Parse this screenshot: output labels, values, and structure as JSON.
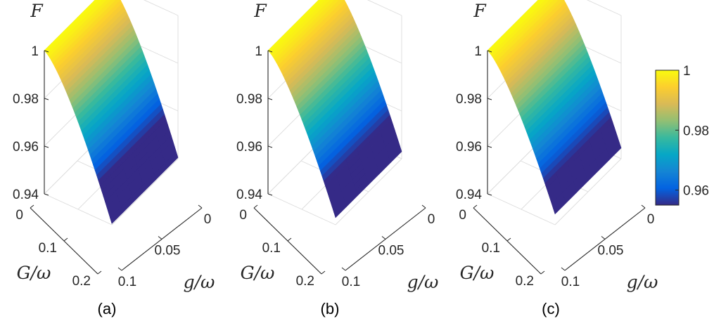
{
  "chart_data": [
    {
      "panel_label": "(a)",
      "type": "surface",
      "zlabel": "F",
      "xlabel": "g/ω",
      "ylabel": "G/ω",
      "xlim": [
        0,
        0.1
      ],
      "ylim": [
        0,
        0.2
      ],
      "zlim": [
        0.94,
        1.0
      ],
      "x_ticks": [
        "0",
        "0.05",
        "0.1"
      ],
      "y_ticks": [
        "0",
        "0.1",
        "0.2"
      ],
      "z_ticks": [
        "0.94",
        "0.96",
        "0.98",
        "1"
      ],
      "x_axis": [
        0,
        0.1
      ],
      "y_axis": [
        0,
        0.2
      ],
      "F_corners": {
        "g0_G0": 1.0,
        "g01_G0": 1.0,
        "g0_G02": 0.9405,
        "g01_G02": 0.9405
      },
      "grid": true
    },
    {
      "panel_label": "(b)",
      "type": "surface",
      "zlabel": "F",
      "xlabel": "g/ω",
      "ylabel": "G/ω",
      "xlim": [
        0,
        0.1
      ],
      "ylim": [
        0,
        0.2
      ],
      "zlim": [
        0.94,
        1.0
      ],
      "x_ticks": [
        "0",
        "0.05",
        "0.1"
      ],
      "y_ticks": [
        "0",
        "0.1",
        "0.2"
      ],
      "z_ticks": [
        "0.94",
        "0.96",
        "0.98",
        "1"
      ],
      "F_corners": {
        "g0_G0": 1.0,
        "g01_G0": 1.0,
        "g0_G02": 0.943,
        "g01_G02": 0.943
      },
      "grid": true
    },
    {
      "panel_label": "(c)",
      "type": "surface",
      "zlabel": "F",
      "xlabel": "g/ω",
      "ylabel": "G/ω",
      "xlim": [
        0,
        0.1
      ],
      "ylim": [
        0,
        0.2
      ],
      "zlim": [
        0.94,
        1.0
      ],
      "x_ticks": [
        "0",
        "0.05",
        "0.1"
      ],
      "y_ticks": [
        "0",
        "0.1",
        "0.2"
      ],
      "z_ticks": [
        "0.94",
        "0.96",
        "0.98",
        "1"
      ],
      "F_corners": {
        "g0_G0": 1.0,
        "g01_G0": 1.0,
        "g0_G02": 0.9445,
        "g01_G02": 0.9445
      },
      "grid": true
    }
  ],
  "colorbar": {
    "colormap": "parula",
    "range": [
      0.955,
      1.0
    ],
    "ticks": [
      "0.96",
      "0.98",
      "1"
    ],
    "tick_values": [
      0.96,
      0.98,
      1.0
    ]
  },
  "colors": {
    "parula": [
      "#352a87",
      "#0363e1",
      "#1485d4",
      "#06a7c6",
      "#38b99e",
      "#92bf73",
      "#d9ba56",
      "#fcce2e",
      "#f9fb0e"
    ]
  }
}
